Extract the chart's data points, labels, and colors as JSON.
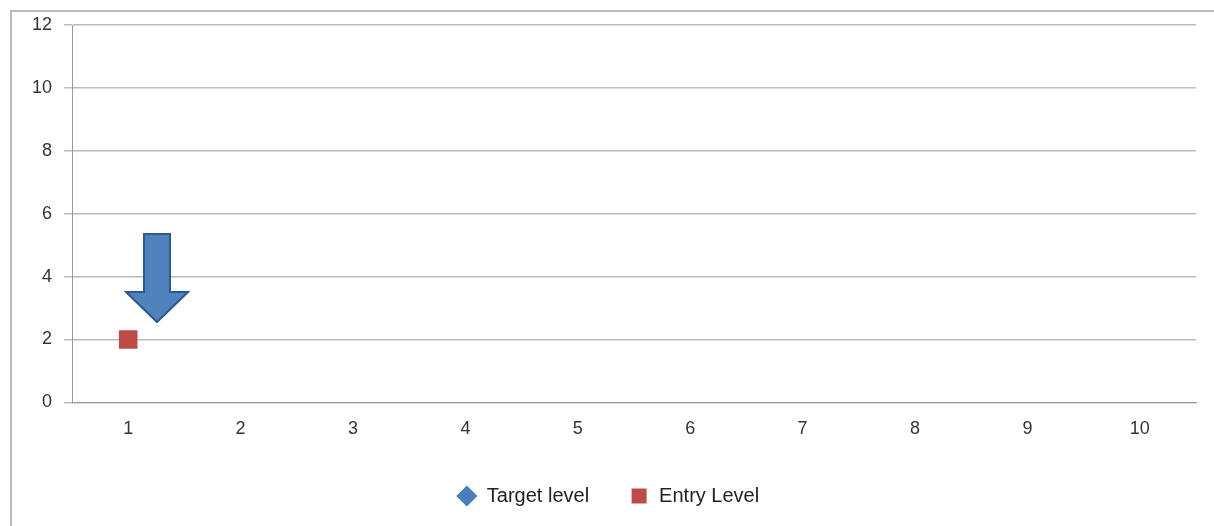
{
  "chart_data": {
    "type": "line",
    "categories": [
      "1",
      "2",
      "3",
      "4",
      "5",
      "6",
      "7",
      "8",
      "9",
      "10"
    ],
    "series": [
      {
        "name": "Target level",
        "color": "#4a7ebb",
        "marker": "diamond",
        "values": [
          null,
          null,
          null,
          null,
          null,
          null,
          null,
          null,
          null,
          null
        ]
      },
      {
        "name": "Entry Level",
        "color": "#be4b48",
        "marker": "square",
        "values": [
          2,
          null,
          null,
          null,
          null,
          null,
          null,
          null,
          null,
          null
        ]
      }
    ],
    "ylim": [
      0,
      12
    ],
    "yticks": [
      0,
      2,
      4,
      6,
      8,
      10,
      12
    ],
    "grid": "y",
    "legend": "bottom"
  }
}
